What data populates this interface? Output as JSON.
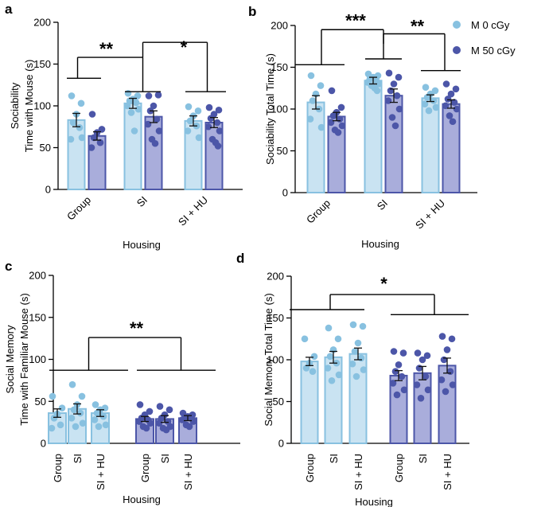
{
  "legend": {
    "items": [
      {
        "label": "M 0 cGy",
        "color": "#88c1e0"
      },
      {
        "label": "M 50 cGy",
        "color": "#4c56a8"
      }
    ]
  },
  "colors": {
    "light_fill": "#c9e3f2",
    "light_edge": "#88c1e0",
    "light_dot": "#88c1e0",
    "dark_fill": "#a9addb",
    "dark_edge": "#4c56a8",
    "dark_dot": "#4c56a8"
  },
  "chart_data": [
    {
      "panel": "a",
      "type": "bar",
      "layout": "grouped",
      "ylabel": [
        "Sociability",
        "Time with Mouse (s)"
      ],
      "xlabel": "Housing",
      "ylim": [
        0,
        200
      ],
      "yticks": [
        0,
        50,
        100,
        150,
        200
      ],
      "categories": [
        "Group",
        "SI",
        "SI + HU"
      ],
      "series": [
        {
          "name": "M 0 cGy",
          "values": [
            83,
            103,
            82
          ],
          "sem": [
            8,
            6,
            6
          ],
          "points": [
            [
              112,
              103,
              90,
              80,
              74,
              60,
              62
            ],
            [
              115,
              112,
              108,
              106,
              104,
              100,
              96,
              92,
              70
            ],
            [
              99,
              94,
              88,
              82,
              76,
              70,
              62
            ]
          ]
        },
        {
          "name": "M 50 cGy",
          "values": [
            64,
            87,
            80
          ],
          "sem": [
            5,
            7,
            6
          ],
          "points": [
            [
              90,
              72,
              68,
              62,
              56,
              50
            ],
            [
              112,
              113,
              100,
              94,
              84,
              78,
              70,
              60,
              55
            ],
            [
              98,
              95,
              90,
              85,
              80,
              75,
              70,
              60,
              56,
              52
            ]
          ]
        }
      ],
      "significance": [
        {
          "label": "**",
          "between": "Group vs SI"
        },
        {
          "label": "*",
          "between": "SI vs SI + HU"
        }
      ]
    },
    {
      "panel": "b",
      "type": "bar",
      "layout": "grouped",
      "ylabel": [
        "Sociability Total Time (s)"
      ],
      "xlabel": "Housing",
      "ylim": [
        0,
        200
      ],
      "yticks": [
        0,
        50,
        100,
        150,
        200
      ],
      "categories": [
        "Group",
        "SI",
        "SI + HU"
      ],
      "series": [
        {
          "name": "M 0 cGy",
          "values": [
            108,
            134,
            113
          ],
          "sem": [
            8,
            4,
            4
          ],
          "points": [
            [
              140,
              128,
              118,
              110,
              100,
              88,
              78
            ],
            [
              142,
              140,
              138,
              136,
              134,
              132,
              130,
              128,
              125,
              122
            ],
            [
              126,
              122,
              118,
              114,
              110,
              106,
              102,
              98
            ]
          ]
        },
        {
          "name": "M 50 cGy",
          "values": [
            91,
            116,
            106
          ],
          "sem": [
            5,
            8,
            5
          ],
          "points": [
            [
              122,
              102,
              96,
              92,
              88,
              84,
              80,
              75,
              72
            ],
            [
              143,
              138,
              130,
              122,
              116,
              110,
              100,
              90,
              80
            ],
            [
              130,
              124,
              118,
              112,
              108,
              104,
              100,
              92,
              85
            ]
          ]
        }
      ],
      "significance": [
        {
          "label": "***",
          "between": "Group vs SI"
        },
        {
          "label": "**",
          "between": "SI vs SI + HU"
        }
      ]
    },
    {
      "panel": "c",
      "type": "bar",
      "layout": "split",
      "ylabel": [
        "Social Memory",
        "Time with Familiar Mouse (s)"
      ],
      "xlabel": "Housing",
      "ylim": [
        0,
        200
      ],
      "yticks": [
        0,
        50,
        100,
        150,
        200
      ],
      "categories": [
        "Group",
        "SI",
        "SI + HU"
      ],
      "series": [
        {
          "name": "M 0 cGy",
          "values": [
            36,
            41,
            36
          ],
          "sem": [
            5,
            6,
            4
          ],
          "points": [
            [
              56,
              42,
              35,
              30,
              22,
              18
            ],
            [
              70,
              56,
              46,
              40,
              36,
              30,
              24,
              20
            ],
            [
              46,
              42,
              40,
              36,
              32,
              28,
              22,
              20
            ]
          ]
        },
        {
          "name": "M 50 cGy",
          "values": [
            29,
            29,
            30
          ],
          "sem": [
            3,
            4,
            3
          ],
          "points": [
            [
              46,
              38,
              34,
              30,
              28,
              26,
              24,
              20,
              18
            ],
            [
              44,
              40,
              34,
              30,
              26,
              24,
              20,
              18,
              16
            ],
            [
              36,
              34,
              32,
              30,
              30,
              28,
              26,
              22,
              20
            ]
          ]
        }
      ],
      "significance": [
        {
          "label": "**",
          "between": "M 0 cGy vs M 50 cGy"
        }
      ]
    },
    {
      "panel": "d",
      "type": "bar",
      "layout": "split",
      "ylabel": [
        "Social Memory Total Time (s)"
      ],
      "xlabel": "Housing",
      "ylim": [
        0,
        200
      ],
      "yticks": [
        0,
        50,
        100,
        150,
        200
      ],
      "categories": [
        "Group",
        "SI",
        "SI + HU"
      ],
      "series": [
        {
          "name": "M 0 cGy",
          "values": [
            98,
            103,
            107
          ],
          "sem": [
            5,
            7,
            7
          ],
          "points": [
            [
              125,
              104,
              96,
              90,
              86
            ],
            [
              138,
              125,
              112,
              104,
              96,
              90,
              82,
              75
            ],
            [
              142,
              140,
              120,
              110,
              102,
              95,
              88,
              80
            ]
          ]
        },
        {
          "name": "M 50 cGy",
          "values": [
            81,
            84,
            93
          ],
          "sem": [
            6,
            8,
            9
          ],
          "points": [
            [
              110,
              108,
              94,
              86,
              80,
              72,
              64,
              58
            ],
            [
              108,
              105,
              100,
              90,
              80,
              70,
              64,
              54
            ],
            [
              128,
              125,
              112,
              100,
              86,
              76,
              70,
              62
            ]
          ]
        }
      ],
      "significance": [
        {
          "label": "*",
          "between": "M 0 cGy vs M 50 cGy"
        }
      ]
    }
  ]
}
